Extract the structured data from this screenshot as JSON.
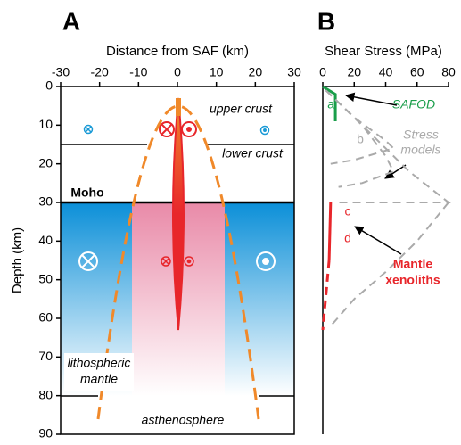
{
  "chart_data": [
    {
      "type": "section",
      "panel": "A",
      "xlabel": "Distance from SAF (km)",
      "ylabel": "Depth (km)",
      "xlim": [
        -30,
        30
      ],
      "xticks": [
        -30,
        -20,
        -10,
        0,
        10,
        20,
        30
      ],
      "ylim": [
        0,
        90
      ],
      "yticks": [
        0,
        10,
        20,
        30,
        40,
        50,
        60,
        70,
        80,
        90
      ],
      "labels": {
        "upper": "upper crust",
        "lower": "lower crust",
        "moho": "Moho",
        "litho": [
          "lithospheric",
          "mantle"
        ],
        "astheno": "asthenosphere"
      }
    },
    {
      "type": "line",
      "panel": "B",
      "xlabel": "Shear Stress (MPa)",
      "xlim": [
        0,
        80
      ],
      "xticks": [
        0,
        20,
        40,
        60,
        80
      ],
      "ylim": [
        0,
        90
      ],
      "series": [
        {
          "name": "SAFOD",
          "color": "#1a9e4a",
          "curves": [
            {
              "x": [
                0,
                8,
                8
              ],
              "values": [
                0,
                2,
                9
              ],
              "dash": false
            }
          ]
        },
        {
          "name": [
            "Stress",
            "models"
          ],
          "color": "#aaaaaa",
          "curves": [
            {
              "x": [
                2,
                20,
                40,
                45,
                20,
                5
              ],
              "values": [
                1,
                8,
                14,
                16,
                19,
                20
              ],
              "dash": true
            },
            {
              "x": [
                2,
                25,
                40,
                45,
                25,
                10
              ],
              "values": [
                1,
                10,
                18,
                22,
                25,
                26
              ],
              "dash": true
            },
            {
              "x": [
                2,
                30,
                55,
                80,
                10
              ],
              "values": [
                1,
                12,
                22,
                30,
                30
              ],
              "dash": true
            },
            {
              "x": [
                80,
                60,
                40,
                20,
                5
              ],
              "values": [
                30,
                40,
                48,
                55,
                62
              ],
              "dash": true
            }
          ]
        },
        {
          "name": [
            "Mantle",
            "xenoliths"
          ],
          "color": "#e8262b",
          "curves": [
            {
              "x": [
                5,
                4
              ],
              "values": [
                30,
                45
              ],
              "dash": false
            },
            {
              "x": [
                4,
                0
              ],
              "values": [
                45,
                63
              ],
              "dash": true
            }
          ]
        }
      ],
      "annotations": [
        "a",
        "b",
        "c",
        "d"
      ]
    }
  ]
}
